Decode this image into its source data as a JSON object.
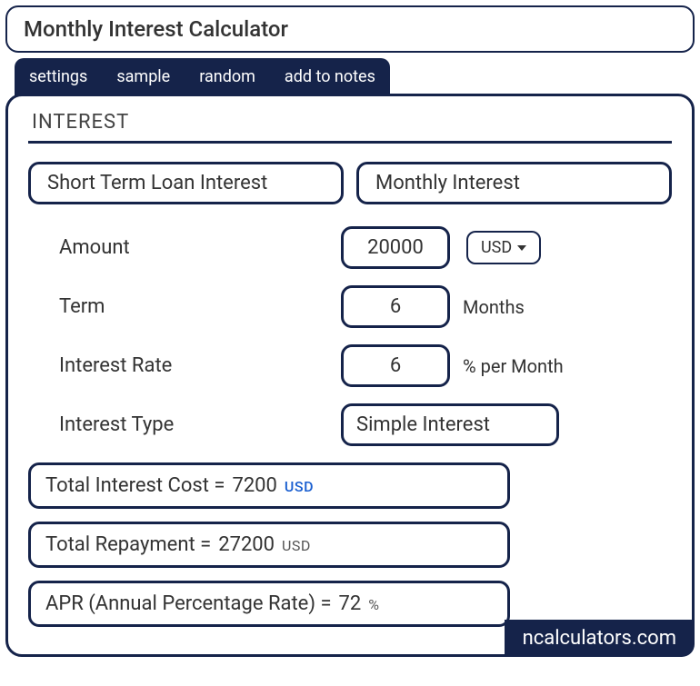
{
  "colors": {
    "primary": "#15234a",
    "accent_blue": "#1a5fd0",
    "text": "#333333",
    "background": "#ffffff"
  },
  "title": "Monthly Interest Calculator",
  "tabs": {
    "settings": "settings",
    "sample": "sample",
    "random": "random",
    "add_to_notes": "add to notes"
  },
  "section_title": "INTEREST",
  "calc_types": {
    "short_term": "Short Term Loan Interest",
    "monthly": "Monthly Interest"
  },
  "fields": {
    "amount": {
      "label": "Amount",
      "value": "20000",
      "currency": "USD"
    },
    "term": {
      "label": "Term",
      "value": "6",
      "unit": "Months"
    },
    "rate": {
      "label": "Interest Rate",
      "value": "6",
      "unit": "% per Month"
    },
    "type": {
      "label": "Interest Type",
      "value": "Simple Interest"
    }
  },
  "results": {
    "interest_cost": {
      "label": "Total Interest Cost  =",
      "value": "7200",
      "unit": "USD"
    },
    "repayment": {
      "label": "Total Repayment  =",
      "value": "27200",
      "unit": "USD"
    },
    "apr": {
      "label": "APR (Annual Percentage Rate)  =",
      "value": "72",
      "unit": "%"
    }
  },
  "brand": "ncalculators.com"
}
